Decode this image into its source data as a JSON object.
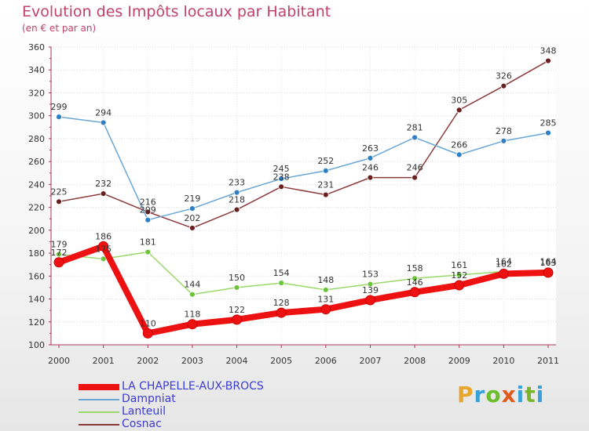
{
  "title": "Evolution des Impôts locaux par Habitant",
  "subtitle": "(en € et par an)",
  "brand": {
    "text": "Proxiti",
    "letters": [
      "P",
      "r",
      "o",
      "x",
      "i",
      "t",
      "i"
    ],
    "letter_colors": [
      "#e8a62a",
      "#3aa0d8",
      "#6cbf2a",
      "#e05a1e",
      "#3aa0d8",
      "#7ab52a",
      "#3aa0d8"
    ]
  },
  "chart_data": {
    "type": "line",
    "title": "Evolution des Impôts locaux par Habitant",
    "subtitle": "(en € et par an)",
    "xlabel": "",
    "ylabel": "",
    "x": [
      "2000",
      "2001",
      "2002",
      "2003",
      "2004",
      "2005",
      "2006",
      "2007",
      "2008",
      "2009",
      "2010",
      "2011"
    ],
    "ylim": [
      100,
      360
    ],
    "yticks": [
      100,
      120,
      140,
      160,
      180,
      200,
      220,
      240,
      260,
      280,
      300,
      320,
      340,
      360
    ],
    "grid": true,
    "legend_position": "bottom-left",
    "series": [
      {
        "name": "LA CHAPELLE-AUX-BROCS",
        "color": "#ee1111",
        "marker": "#ee1111",
        "values": [
          172,
          186,
          110,
          118,
          122,
          128,
          131,
          139,
          146,
          152,
          162,
          163
        ],
        "labels": [
          "172",
          "186",
          "110",
          "118",
          "122",
          "128",
          "131",
          "139",
          "146",
          "152",
          "162",
          "163"
        ]
      },
      {
        "name": "Dampniat",
        "color": "#6aa6d6",
        "marker": "#2f7fc4",
        "values": [
          299,
          294,
          209,
          219,
          233,
          245,
          252,
          263,
          281,
          266,
          278,
          285
        ],
        "labels": [
          "299",
          "294",
          "209",
          "219",
          "233",
          "245",
          "252",
          "263",
          "281",
          "266",
          "278",
          "285"
        ]
      },
      {
        "name": "Lanteuil",
        "color": "#9ad86a",
        "marker": "#6cc43a",
        "values": [
          179,
          175,
          181,
          144,
          150,
          154,
          148,
          153,
          158,
          161,
          164,
          164
        ],
        "labels": [
          "179",
          "175",
          "181",
          "144",
          "150",
          "154",
          "148",
          "153",
          "158",
          "161",
          "164",
          "164"
        ]
      },
      {
        "name": "Cosnac",
        "color": "#8a3a3a",
        "marker": "#6a1f1f",
        "values": [
          225,
          232,
          216,
          202,
          218,
          238,
          231,
          246,
          246,
          305,
          326,
          348
        ],
        "labels": [
          "225",
          "232",
          "216",
          "202",
          "218",
          "238",
          "231",
          "246",
          "246",
          "305",
          "326",
          "348"
        ]
      }
    ]
  }
}
